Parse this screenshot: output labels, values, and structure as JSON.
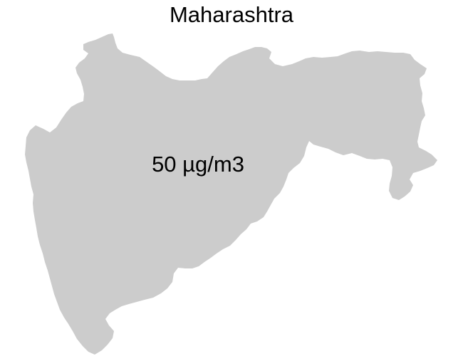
{
  "map": {
    "title": "Maharashtra",
    "region": {
      "name": "Maharashtra",
      "value_label": "50 µg/m3",
      "fill_color": "#cccccc"
    }
  }
}
